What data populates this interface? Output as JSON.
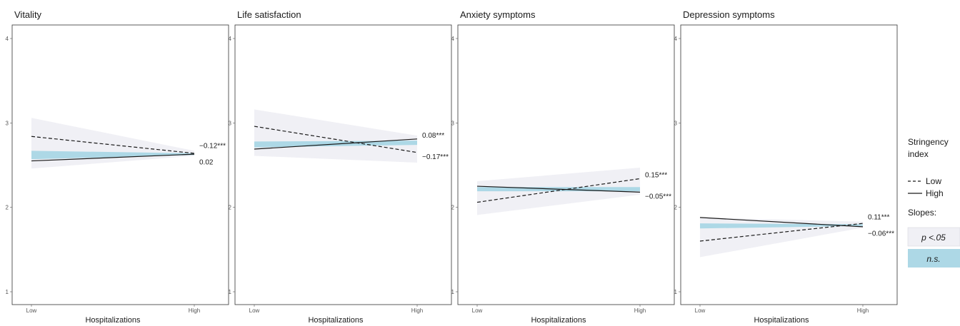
{
  "chart_data": {
    "type": "line",
    "x_categories": [
      "Low",
      "High"
    ],
    "xlabel": "Hospitalizations",
    "ylim": [
      1,
      4
    ],
    "yticks": [
      1,
      2,
      3,
      4
    ],
    "legend": {
      "title": "Stringency index",
      "title_lines": [
        "Stringency",
        "index"
      ],
      "line_entries": [
        {
          "label": "Low",
          "style": "dashed"
        },
        {
          "label": "High",
          "style": "solid"
        }
      ],
      "slopes_title": "Slopes:",
      "slope_entries": [
        {
          "label": "p <.05",
          "fill": "#f0f0f5"
        },
        {
          "label": "n.s.",
          "fill": "#add8e6"
        }
      ]
    },
    "panels": [
      {
        "title": "Vitality",
        "series": [
          {
            "name": "Low",
            "style": "dashed",
            "values": [
              2.84,
              2.64
            ],
            "slope_label": "−0.12***"
          },
          {
            "name": "High",
            "style": "solid",
            "values": [
              2.55,
              2.63
            ],
            "slope_label": "0.02"
          }
        ],
        "band_gray": {
          "low": [
            2.46,
            2.61
          ],
          "high": [
            3.06,
            2.67
          ]
        },
        "band_blue": {
          "low": [
            2.57,
            2.62
          ],
          "high": [
            2.67,
            2.64
          ]
        }
      },
      {
        "title": "Life satisfaction",
        "series": [
          {
            "name": "Low",
            "style": "dashed",
            "values": [
              2.96,
              2.65
            ],
            "slope_label": "−0.17***"
          },
          {
            "name": "High",
            "style": "solid",
            "values": [
              2.69,
              2.81
            ],
            "slope_label": "0.08***"
          }
        ],
        "band_gray": {
          "low": [
            2.61,
            2.53
          ],
          "high": [
            3.16,
            2.85
          ]
        },
        "band_blue": {
          "low": [
            2.71,
            2.74
          ],
          "high": [
            2.78,
            2.79
          ]
        }
      },
      {
        "title": "Anxiety symptoms",
        "series": [
          {
            "name": "Low",
            "style": "dashed",
            "values": [
              2.06,
              2.34
            ],
            "slope_label": "0.15***"
          },
          {
            "name": "High",
            "style": "solid",
            "values": [
              2.25,
              2.18
            ],
            "slope_label": "−0.05***"
          }
        ],
        "band_gray": {
          "low": [
            1.91,
            2.15
          ],
          "high": [
            2.31,
            2.47
          ]
        },
        "band_blue": {
          "low": [
            2.19,
            2.19
          ],
          "high": [
            2.24,
            2.24
          ]
        }
      },
      {
        "title": "Depression symptoms",
        "series": [
          {
            "name": "Low",
            "style": "dashed",
            "values": [
              1.6,
              1.81
            ],
            "slope_label": "0.11***"
          },
          {
            "name": "High",
            "style": "solid",
            "values": [
              1.88,
              1.77
            ],
            "slope_label": "−0.06***"
          }
        ],
        "band_gray": {
          "low": [
            1.41,
            1.76
          ],
          "high": [
            1.88,
            1.83
          ]
        },
        "band_blue": {
          "low": [
            1.75,
            1.78
          ],
          "high": [
            1.81,
            1.8
          ]
        }
      }
    ],
    "colors": {
      "band_gray": "#f0f0f5",
      "band_blue": "#add8e6",
      "line": "#1a1a1a",
      "panel_border": "#333333"
    }
  }
}
